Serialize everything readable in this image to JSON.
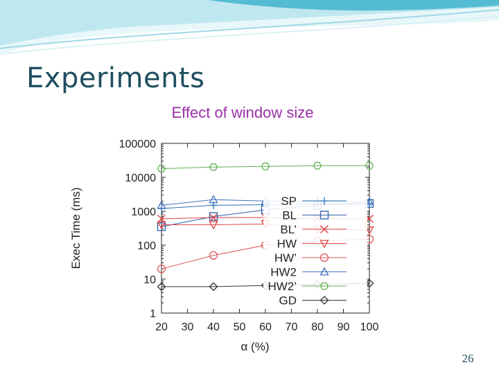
{
  "slide": {
    "title": "Experiments",
    "subtitle": "Effect of window size",
    "page_number": "26"
  },
  "colors": {
    "title": "#1f4e5f",
    "subtitle": "#9b30a8",
    "banner_light": "#cfeef4",
    "banner_dark": "#3fb3cc"
  },
  "chart_data": {
    "type": "line",
    "ylabel": "Exec Time (ms)",
    "xlabel": "α (%)",
    "y_scale": "log",
    "ylim": [
      1,
      100000
    ],
    "xlim": [
      20,
      100
    ],
    "x_ticks": [
      "20",
      "30",
      "40",
      "50",
      "60",
      "70",
      "80",
      "90",
      "100"
    ],
    "x_tick_values": [
      20,
      30,
      40,
      50,
      60,
      70,
      80,
      90,
      100
    ],
    "y_ticks": [
      "100000",
      "10000",
      "1000",
      "100",
      "10",
      "1"
    ],
    "y_tick_values": [
      100000,
      10000,
      1000,
      100,
      10,
      1
    ],
    "legend_position": "center-right",
    "x": [
      20,
      40,
      60,
      80,
      100
    ],
    "series": [
      {
        "name": "SP",
        "color": "#2a6fb8",
        "marker": "plus",
        "values": [
          1200,
          1500,
          1550,
          1650,
          1700
        ]
      },
      {
        "name": "BL",
        "color": "#2a5fa8",
        "marker": "square",
        "values": [
          350,
          700,
          1100,
          1500,
          1700
        ]
      },
      {
        "name": "BL’",
        "color": "#d94040",
        "marker": "x",
        "values": [
          600,
          650,
          650,
          600,
          600
        ]
      },
      {
        "name": "HW",
        "color": "#e04848",
        "marker": "triangle-down",
        "values": [
          400,
          400,
          420,
          300,
          280
        ]
      },
      {
        "name": "HW’",
        "color": "#e05858",
        "marker": "circle",
        "values": [
          20,
          50,
          100,
          130,
          150
        ]
      },
      {
        "name": "HW2",
        "color": "#4070c0",
        "marker": "triangle-up",
        "values": [
          1500,
          2200,
          2000,
          1900,
          1900
        ]
      },
      {
        "name": "HW2’",
        "color": "#60b050",
        "marker": "hexagon",
        "values": [
          18000,
          20000,
          21000,
          22000,
          22000
        ]
      },
      {
        "name": "GD",
        "color": "#333333",
        "marker": "diamond",
        "values": [
          6,
          6,
          6.5,
          7,
          7.5
        ]
      }
    ]
  }
}
